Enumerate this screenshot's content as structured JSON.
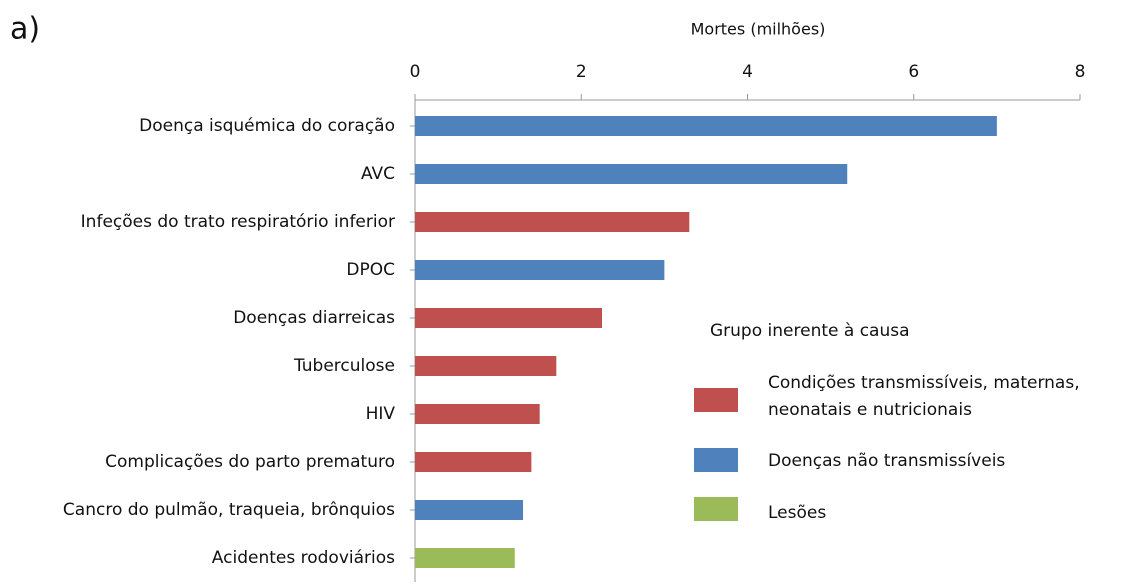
{
  "chart_data": {
    "type": "bar",
    "orientation": "horizontal",
    "panel_label": "a)",
    "x_label": "Mortes (milhões)",
    "categories": [
      "Doença isquémica do coração",
      "AVC",
      "Infeções do trato respiratório inferior",
      "DPOC",
      "Doenças diarreicas",
      "Tuberculose",
      "HIV",
      "Complicações do parto prematuro",
      "Cancro do pulmão, traqueia, brônquios",
      "Acidentes rodoviários"
    ],
    "series": [
      {
        "name": "Condições transmissíveis, maternas, neonatais e nutricionais",
        "color": "#c0504d",
        "values": [
          null,
          null,
          3.3,
          null,
          2.25,
          1.7,
          1.5,
          1.4,
          null,
          null
        ]
      },
      {
        "name": "Doenças não transmissíveis",
        "color": "#4f81bd",
        "values": [
          7.0,
          5.2,
          null,
          3.0,
          null,
          null,
          null,
          null,
          1.3,
          null
        ]
      },
      {
        "name": "Lesões",
        "color": "#9bbb59",
        "values": [
          null,
          null,
          null,
          null,
          null,
          null,
          null,
          null,
          null,
          1.2
        ]
      }
    ],
    "legend_title": "Grupo inerente à causa",
    "xlim": [
      0,
      8
    ],
    "xticks": [
      0,
      2,
      4,
      6,
      8
    ]
  }
}
